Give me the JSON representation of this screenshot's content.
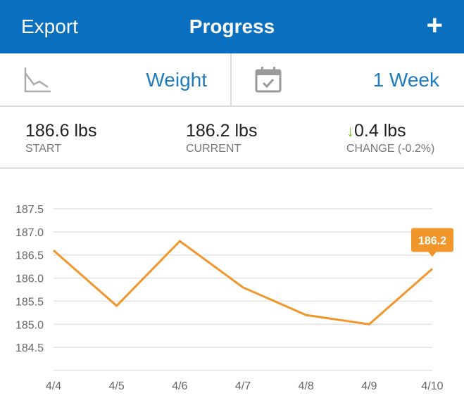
{
  "header": {
    "export_label": "Export",
    "title": "Progress",
    "add_icon": "plus-icon"
  },
  "selectors": {
    "metric": {
      "icon": "line-chart-icon",
      "label": "Weight"
    },
    "range": {
      "icon": "calendar-check-icon",
      "label": "1 Week"
    }
  },
  "stats": {
    "start": {
      "value": "186.6 lbs",
      "label": "START"
    },
    "current": {
      "value": "186.2 lbs",
      "label": "CURRENT"
    },
    "change": {
      "value": "0.4 lbs",
      "label": "CHANGE (-0.2%)",
      "icon": "arrow-down-icon",
      "color": "#7cc21e"
    }
  },
  "colors": {
    "header": "#0b6fc0",
    "line": "#f0962a",
    "accent_text": "#1f7bc0"
  },
  "chart_data": {
    "type": "line",
    "categories": [
      "4/4",
      "4/5",
      "4/6",
      "4/7",
      "4/8",
      "4/9",
      "4/10"
    ],
    "values": [
      186.6,
      185.4,
      186.8,
      185.8,
      185.2,
      185.0,
      186.2
    ],
    "y_ticks": [
      "187.5",
      "187.0",
      "186.5",
      "186.0",
      "185.5",
      "185.0",
      "184.5"
    ],
    "ylim": [
      184.0,
      187.5
    ],
    "grid": true,
    "callout": "186.2"
  }
}
